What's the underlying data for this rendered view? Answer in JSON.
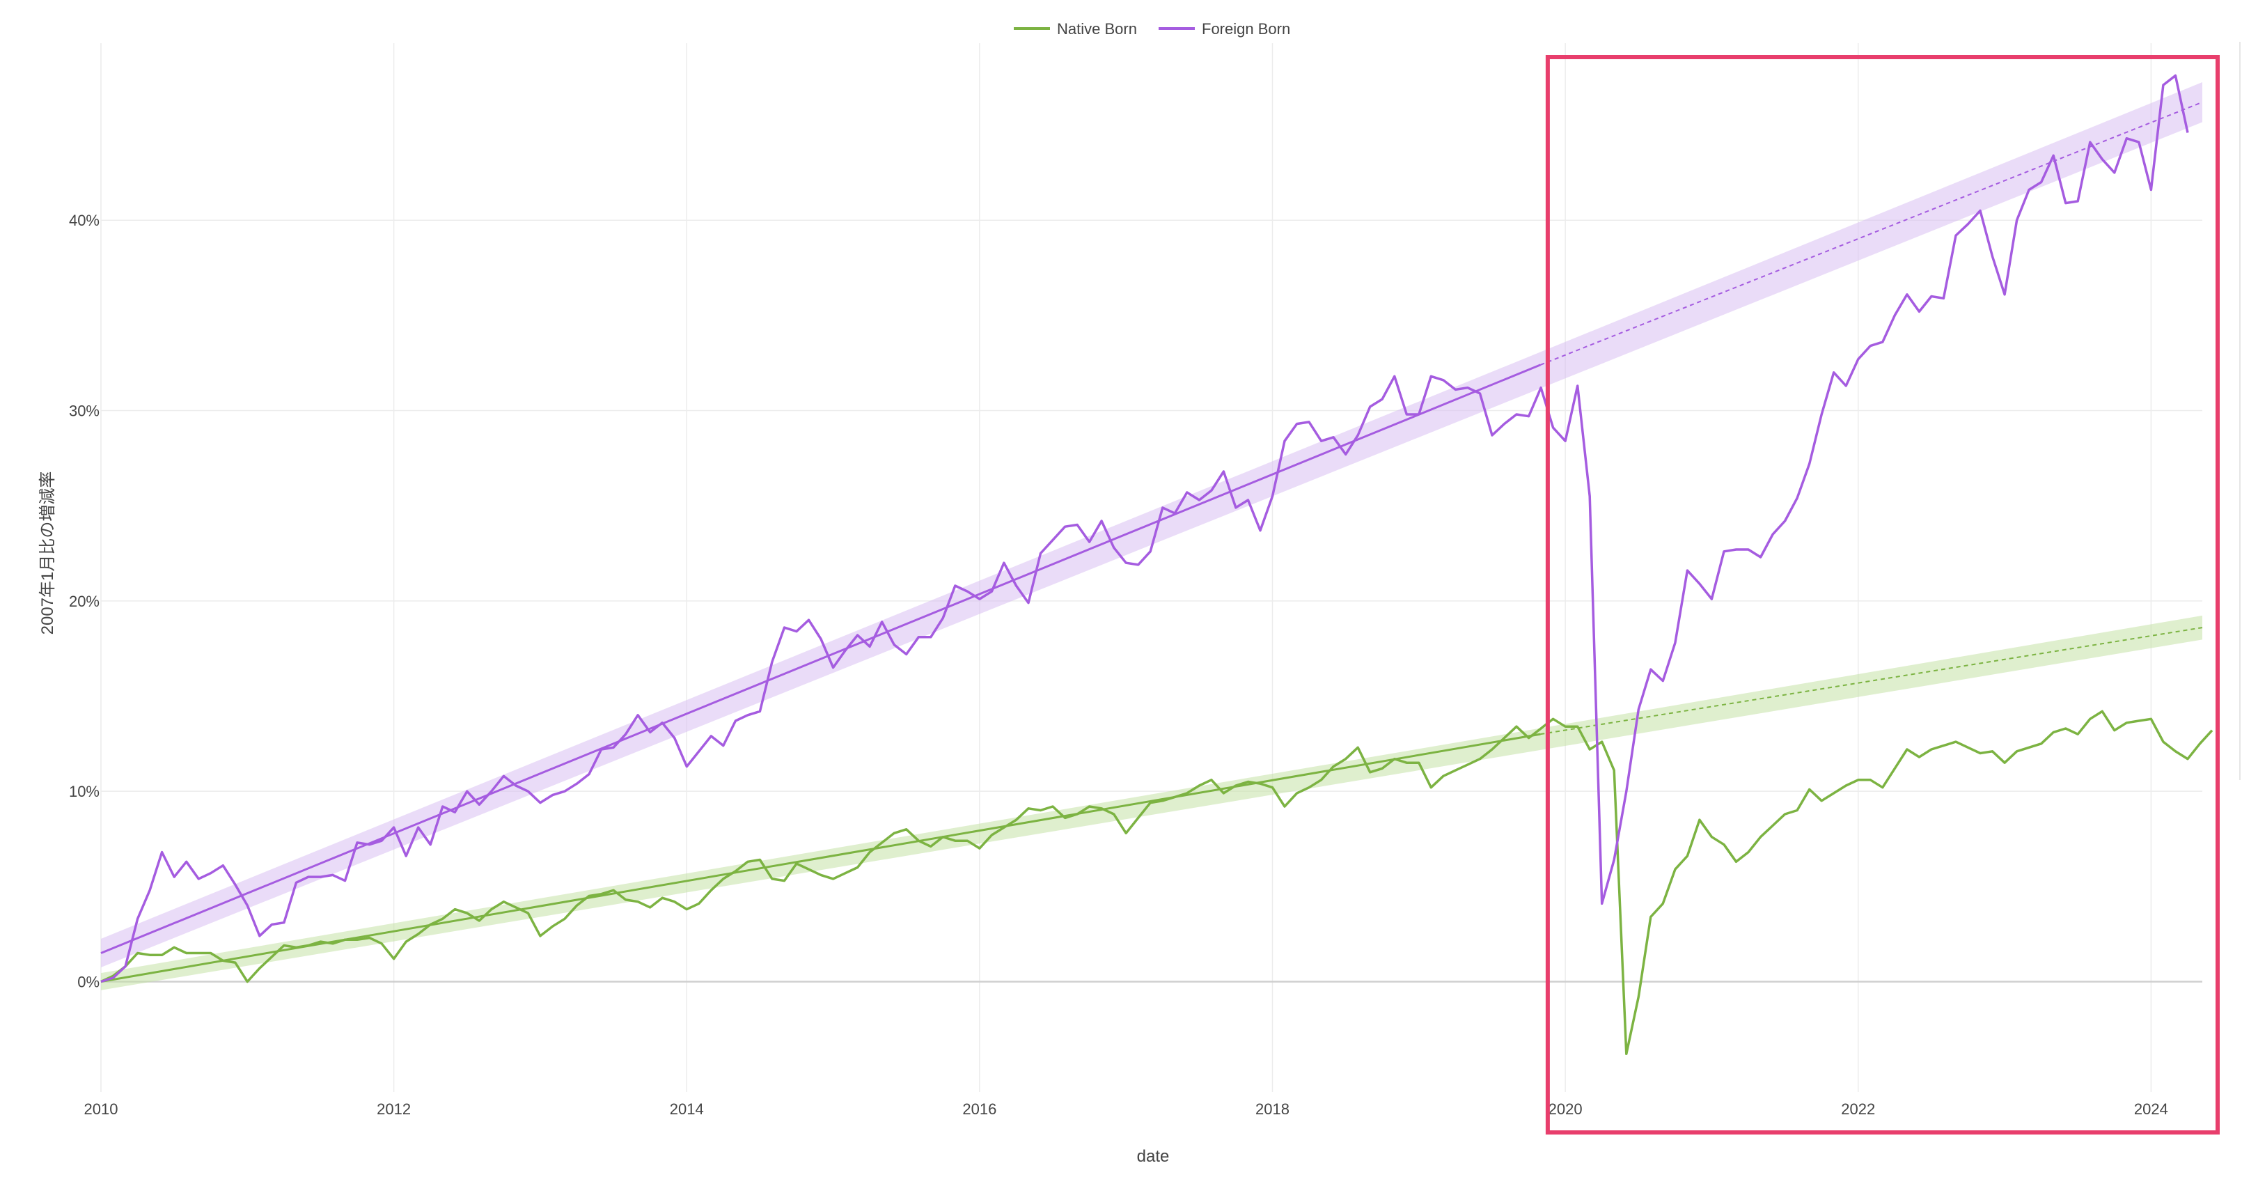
{
  "chart_data": {
    "type": "line",
    "title": "",
    "xlabel": "date",
    "ylabel": "2007年1月比の増減率",
    "x_ticks": [
      "2010",
      "2012",
      "2014",
      "2016",
      "2018",
      "2020",
      "2022",
      "2024"
    ],
    "y_ticks": [
      "0%",
      "10%",
      "20%",
      "30%",
      "40%"
    ],
    "xlim": [
      2010.0,
      2024.35
    ],
    "ylim": [
      -5.8,
      49.3
    ],
    "grid": true,
    "legend_position": "top-center",
    "highlight_region": {
      "x_start": 2019.88,
      "x_end": 2024.35,
      "color": "#e83e6c"
    },
    "series": [
      {
        "name": "Native Born",
        "color": "#7cb342",
        "x_start": 2010.0,
        "x_step": 0.0833333,
        "values": [
          0.0,
          0.3,
          0.8,
          1.5,
          1.4,
          1.4,
          1.8,
          1.5,
          1.5,
          1.5,
          1.1,
          1.0,
          0.0,
          0.7,
          1.3,
          1.9,
          1.8,
          1.9,
          2.1,
          2.0,
          2.2,
          2.2,
          2.3,
          2.0,
          1.2,
          2.1,
          2.5,
          3.0,
          3.3,
          3.8,
          3.6,
          3.2,
          3.8,
          4.2,
          3.9,
          3.6,
          2.4,
          2.9,
          3.3,
          4.0,
          4.5,
          4.6,
          4.8,
          4.3,
          4.2,
          3.9,
          4.4,
          4.2,
          3.8,
          4.1,
          4.8,
          5.4,
          5.8,
          6.3,
          6.4,
          5.4,
          5.3,
          6.2,
          5.9,
          5.6,
          5.4,
          5.7,
          6.0,
          6.8,
          7.3,
          7.8,
          8.0,
          7.4,
          7.1,
          7.6,
          7.4,
          7.4,
          7.0,
          7.7,
          8.1,
          8.5,
          9.1,
          9.0,
          9.2,
          8.6,
          8.8,
          9.2,
          9.1,
          8.8,
          7.8,
          8.6,
          9.4,
          9.5,
          9.7,
          9.9,
          10.3,
          10.6,
          9.9,
          10.3,
          10.5,
          10.4,
          10.2,
          9.2,
          9.9,
          10.2,
          10.6,
          11.3,
          11.7,
          12.3,
          11.0,
          11.2,
          11.7,
          11.5,
          11.5,
          10.2,
          10.8,
          11.1,
          11.4,
          11.7,
          12.2,
          12.8,
          13.4,
          12.8,
          13.3,
          13.8,
          13.4,
          13.4,
          12.2,
          12.6,
          11.1,
          -3.8,
          -0.8,
          3.4,
          4.1,
          5.9,
          6.6,
          8.5,
          7.6,
          7.2,
          6.3,
          6.8,
          7.6,
          8.2,
          8.8,
          9.0,
          10.1,
          9.5,
          9.9,
          10.3,
          10.6,
          10.6,
          10.2,
          11.2,
          12.2,
          11.8,
          12.2,
          12.4,
          12.6,
          12.3,
          12.0,
          12.1,
          11.5,
          12.1,
          12.3,
          12.5,
          13.1,
          13.3,
          13.0,
          13.8,
          14.2,
          13.2,
          13.6,
          13.7,
          13.8,
          12.6,
          12.1,
          11.7,
          12.5,
          13.2
        ]
      },
      {
        "name": "Foreign Born",
        "color": "#a55ce0",
        "x_start": 2010.0,
        "x_step": 0.0833333,
        "values": [
          0.0,
          0.2,
          0.8,
          3.3,
          4.8,
          6.8,
          5.5,
          6.3,
          5.4,
          5.7,
          6.1,
          5.1,
          4.0,
          2.4,
          3.0,
          3.1,
          5.2,
          5.5,
          5.5,
          5.6,
          5.3,
          7.3,
          7.2,
          7.4,
          8.1,
          6.6,
          8.1,
          7.2,
          9.2,
          8.9,
          10.0,
          9.3,
          10.0,
          10.8,
          10.3,
          10.0,
          9.4,
          9.8,
          10.0,
          10.4,
          10.9,
          12.2,
          12.3,
          13.0,
          14.0,
          13.1,
          13.6,
          12.8,
          11.3,
          12.1,
          12.9,
          12.4,
          13.7,
          14.0,
          14.2,
          16.8,
          18.6,
          18.4,
          19.0,
          18.0,
          16.5,
          17.4,
          18.2,
          17.6,
          18.9,
          17.7,
          17.2,
          18.1,
          18.1,
          19.1,
          20.8,
          20.5,
          20.1,
          20.5,
          22.0,
          20.8,
          19.9,
          22.5,
          23.2,
          23.9,
          24.0,
          23.1,
          24.2,
          22.8,
          22.0,
          21.9,
          22.6,
          24.9,
          24.6,
          25.7,
          25.3,
          25.8,
          26.8,
          24.9,
          25.3,
          23.7,
          25.5,
          28.4,
          29.3,
          29.4,
          28.4,
          28.6,
          27.7,
          28.7,
          30.2,
          30.6,
          31.8,
          29.8,
          29.8,
          31.8,
          31.6,
          31.1,
          31.2,
          30.9,
          28.7,
          29.3,
          29.8,
          29.7,
          31.2,
          29.1,
          28.4,
          31.3,
          25.5,
          4.1,
          6.4,
          10.0,
          14.3,
          16.4,
          15.8,
          17.8,
          21.6,
          20.9,
          20.1,
          22.6,
          22.7,
          22.7,
          22.3,
          23.5,
          24.2,
          25.4,
          27.2,
          29.8,
          32.0,
          31.3,
          32.7,
          33.4,
          33.6,
          35.0,
          36.1,
          35.2,
          36.0,
          35.9,
          39.2,
          39.8,
          40.5,
          38.1,
          36.1,
          40.0,
          41.6,
          42.0,
          43.4,
          40.9,
          41.0,
          44.1,
          43.2,
          42.5,
          44.3,
          44.1,
          41.6,
          47.1,
          47.6,
          44.6
        ]
      }
    ],
    "trend_lines": [
      {
        "series": "Native Born",
        "color": "#7cb342",
        "band_color": "#c5e1a5",
        "fit_start": [
          2010.0,
          0.0
        ],
        "fit_end": [
          2019.83,
          13.0
        ],
        "projection_end": [
          2024.35,
          18.6
        ],
        "band_halfwidth": 0.45
      },
      {
        "series": "Foreign Born",
        "color": "#a55ce0",
        "band_color": "#d8bff2",
        "fit_start": [
          2010.0,
          1.5
        ],
        "fit_end": [
          2019.83,
          32.4
        ],
        "projection_end": [
          2024.35,
          46.2
        ],
        "band_halfwidth": 0.75
      }
    ]
  }
}
